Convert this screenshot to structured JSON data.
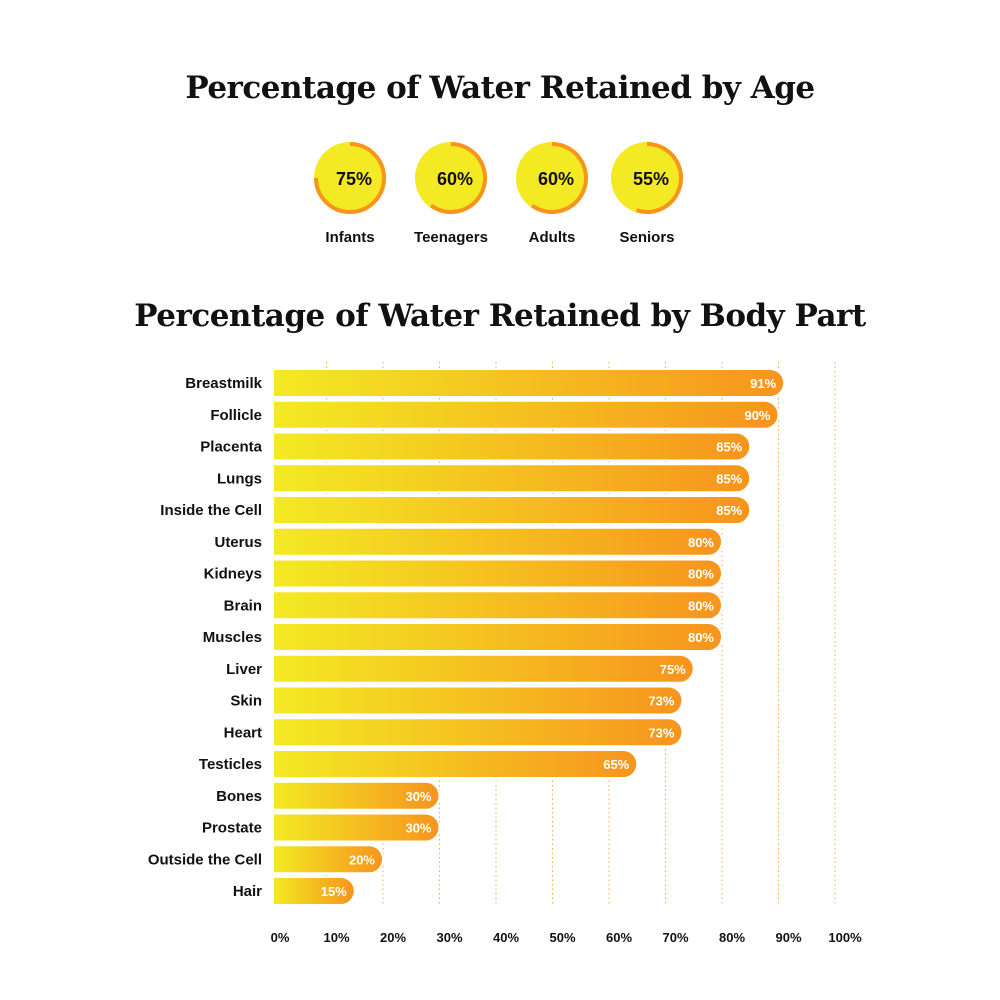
{
  "chart_data": [
    {
      "type": "donut-gauges",
      "title": "Percentage of Water Retained by Age",
      "categories": [
        "Infants",
        "Teenagers",
        "Adults",
        "Seniors"
      ],
      "values": [
        75,
        60,
        60,
        55
      ],
      "labels": [
        "75%",
        "60%",
        "60%",
        "55%"
      ],
      "colors": {
        "fill": "#f3ea23",
        "arc": "#f7941d"
      }
    },
    {
      "type": "bar",
      "orientation": "horizontal",
      "title": "Percentage of Water Retained by Body Part",
      "categories": [
        "Breastmilk",
        "Follicle",
        "Placenta",
        "Lungs",
        "Inside the Cell",
        "Uterus",
        "Kidneys",
        "Brain",
        "Muscles",
        "Liver",
        "Skin",
        "Heart",
        "Testicles",
        "Bones",
        "Prostate",
        "Outside the Cell",
        "Hair"
      ],
      "values": [
        91,
        90,
        85,
        85,
        85,
        80,
        80,
        80,
        80,
        75,
        73,
        73,
        65,
        30,
        30,
        20,
        15
      ],
      "xlim": [
        0,
        100
      ],
      "xticks": [
        "0%",
        "10%",
        "20%",
        "30%",
        "40%",
        "50%",
        "60%",
        "70%",
        "80%",
        "90%",
        "100%"
      ],
      "grid": "vertical dotted",
      "colors": {
        "gradient_start": "#f3ea23",
        "gradient_end": "#f7941d",
        "grid": "#f7941d"
      }
    }
  ]
}
